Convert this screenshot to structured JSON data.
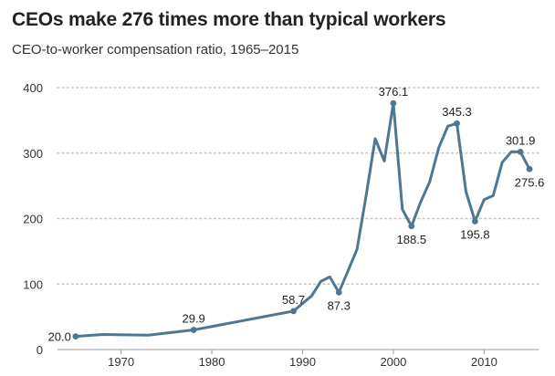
{
  "chart_data": {
    "type": "line",
    "title": "CEOs make 276 times more than typical workers",
    "subtitle": "CEO-to-worker compensation ratio, 1965–2015",
    "xlabel": "",
    "ylabel": "",
    "xlim": [
      1963,
      2016
    ],
    "ylim": [
      0,
      400
    ],
    "x_ticks": [
      1970,
      1980,
      1990,
      2000,
      2010
    ],
    "y_ticks": [
      0,
      100,
      200,
      300,
      400
    ],
    "grid": "horizontal-dotted",
    "color": "#4e7892",
    "series": [
      {
        "name": "CEO-to-worker compensation ratio",
        "points": [
          {
            "x": 1965,
            "y": 20.0
          },
          {
            "x": 1968,
            "y": 23
          },
          {
            "x": 1973,
            "y": 22
          },
          {
            "x": 1978,
            "y": 29.9
          },
          {
            "x": 1989,
            "y": 58.7
          },
          {
            "x": 1991,
            "y": 82
          },
          {
            "x": 1992,
            "y": 104
          },
          {
            "x": 1993,
            "y": 111
          },
          {
            "x": 1994,
            "y": 87.3
          },
          {
            "x": 1995,
            "y": 120
          },
          {
            "x": 1996,
            "y": 153
          },
          {
            "x": 1997,
            "y": 235
          },
          {
            "x": 1998,
            "y": 322
          },
          {
            "x": 1999,
            "y": 288
          },
          {
            "x": 2000,
            "y": 376.1
          },
          {
            "x": 2001,
            "y": 214
          },
          {
            "x": 2002,
            "y": 188.5
          },
          {
            "x": 2003,
            "y": 225
          },
          {
            "x": 2004,
            "y": 256
          },
          {
            "x": 2005,
            "y": 308
          },
          {
            "x": 2006,
            "y": 341
          },
          {
            "x": 2007,
            "y": 345.3
          },
          {
            "x": 2008,
            "y": 241
          },
          {
            "x": 2009,
            "y": 195.8
          },
          {
            "x": 2010,
            "y": 229
          },
          {
            "x": 2011,
            "y": 235
          },
          {
            "x": 2012,
            "y": 286
          },
          {
            "x": 2013,
            "y": 302
          },
          {
            "x": 2014,
            "y": 301.9
          },
          {
            "x": 2015,
            "y": 275.6
          }
        ]
      }
    ],
    "labels": [
      {
        "x": 1965,
        "y": 20.0,
        "text": "20.0",
        "pos": "left"
      },
      {
        "x": 1978,
        "y": 29.9,
        "text": "29.9",
        "pos": "above"
      },
      {
        "x": 1989,
        "y": 58.7,
        "text": "58.7",
        "pos": "above"
      },
      {
        "x": 1994,
        "y": 87.3,
        "text": "87.3",
        "pos": "below"
      },
      {
        "x": 2000,
        "y": 376.1,
        "text": "376.1",
        "pos": "above"
      },
      {
        "x": 2002,
        "y": 188.5,
        "text": "188.5",
        "pos": "below"
      },
      {
        "x": 2007,
        "y": 345.3,
        "text": "345.3",
        "pos": "above"
      },
      {
        "x": 2009,
        "y": 195.8,
        "text": "195.8",
        "pos": "below"
      },
      {
        "x": 2014,
        "y": 301.9,
        "text": "301.9",
        "pos": "above"
      },
      {
        "x": 2015,
        "y": 275.6,
        "text": "275.6",
        "pos": "below"
      }
    ]
  }
}
